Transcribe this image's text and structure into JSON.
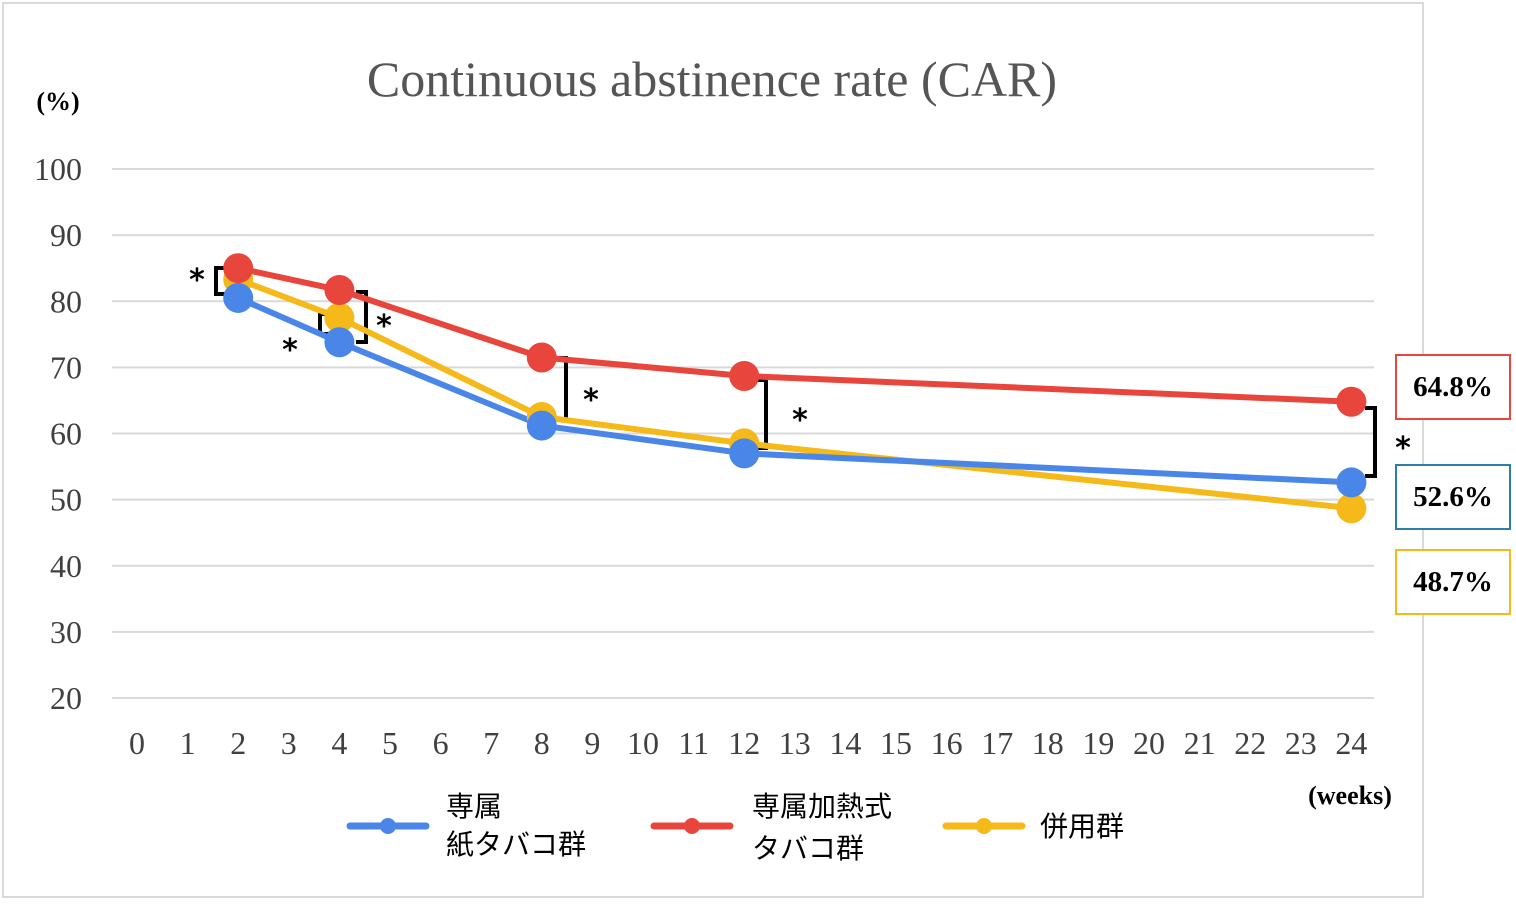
{
  "chart_data": {
    "type": "line",
    "title": "Continuous abstinence rate (CAR)",
    "ylabel": "(%)",
    "xlabel": "(weeks)",
    "ylim": [
      20,
      100
    ],
    "yticks": [
      20,
      30,
      40,
      50,
      60,
      70,
      80,
      90,
      100
    ],
    "xlim": [
      0,
      24
    ],
    "xticks": [
      0,
      1,
      2,
      3,
      4,
      5,
      6,
      7,
      8,
      9,
      10,
      11,
      12,
      13,
      14,
      15,
      16,
      17,
      18,
      19,
      20,
      21,
      22,
      23,
      24
    ],
    "x": [
      2,
      4,
      8,
      12,
      24
    ],
    "series": [
      {
        "name": "専属\n紙タバコ群",
        "color": "#4a86e8",
        "values": [
          80.5,
          73.8,
          61.2,
          57.0,
          52.6
        ]
      },
      {
        "name": "専属加熱式\nタバコ群",
        "color": "#e8453c",
        "values": [
          85.0,
          81.7,
          71.5,
          68.7,
          64.8
        ]
      },
      {
        "name": "併用群",
        "color": "#f6b91a",
        "values": [
          83.3,
          77.5,
          62.5,
          58.5,
          48.7
        ]
      }
    ],
    "significance_marker": "*",
    "end_labels": [
      {
        "text": "64.8%",
        "color": "#e8453c"
      },
      {
        "text": "52.6%",
        "color": "#2e7fa8"
      },
      {
        "text": "48.7%",
        "color": "#f6b91a"
      }
    ],
    "grid": true,
    "legend": "bottom"
  }
}
